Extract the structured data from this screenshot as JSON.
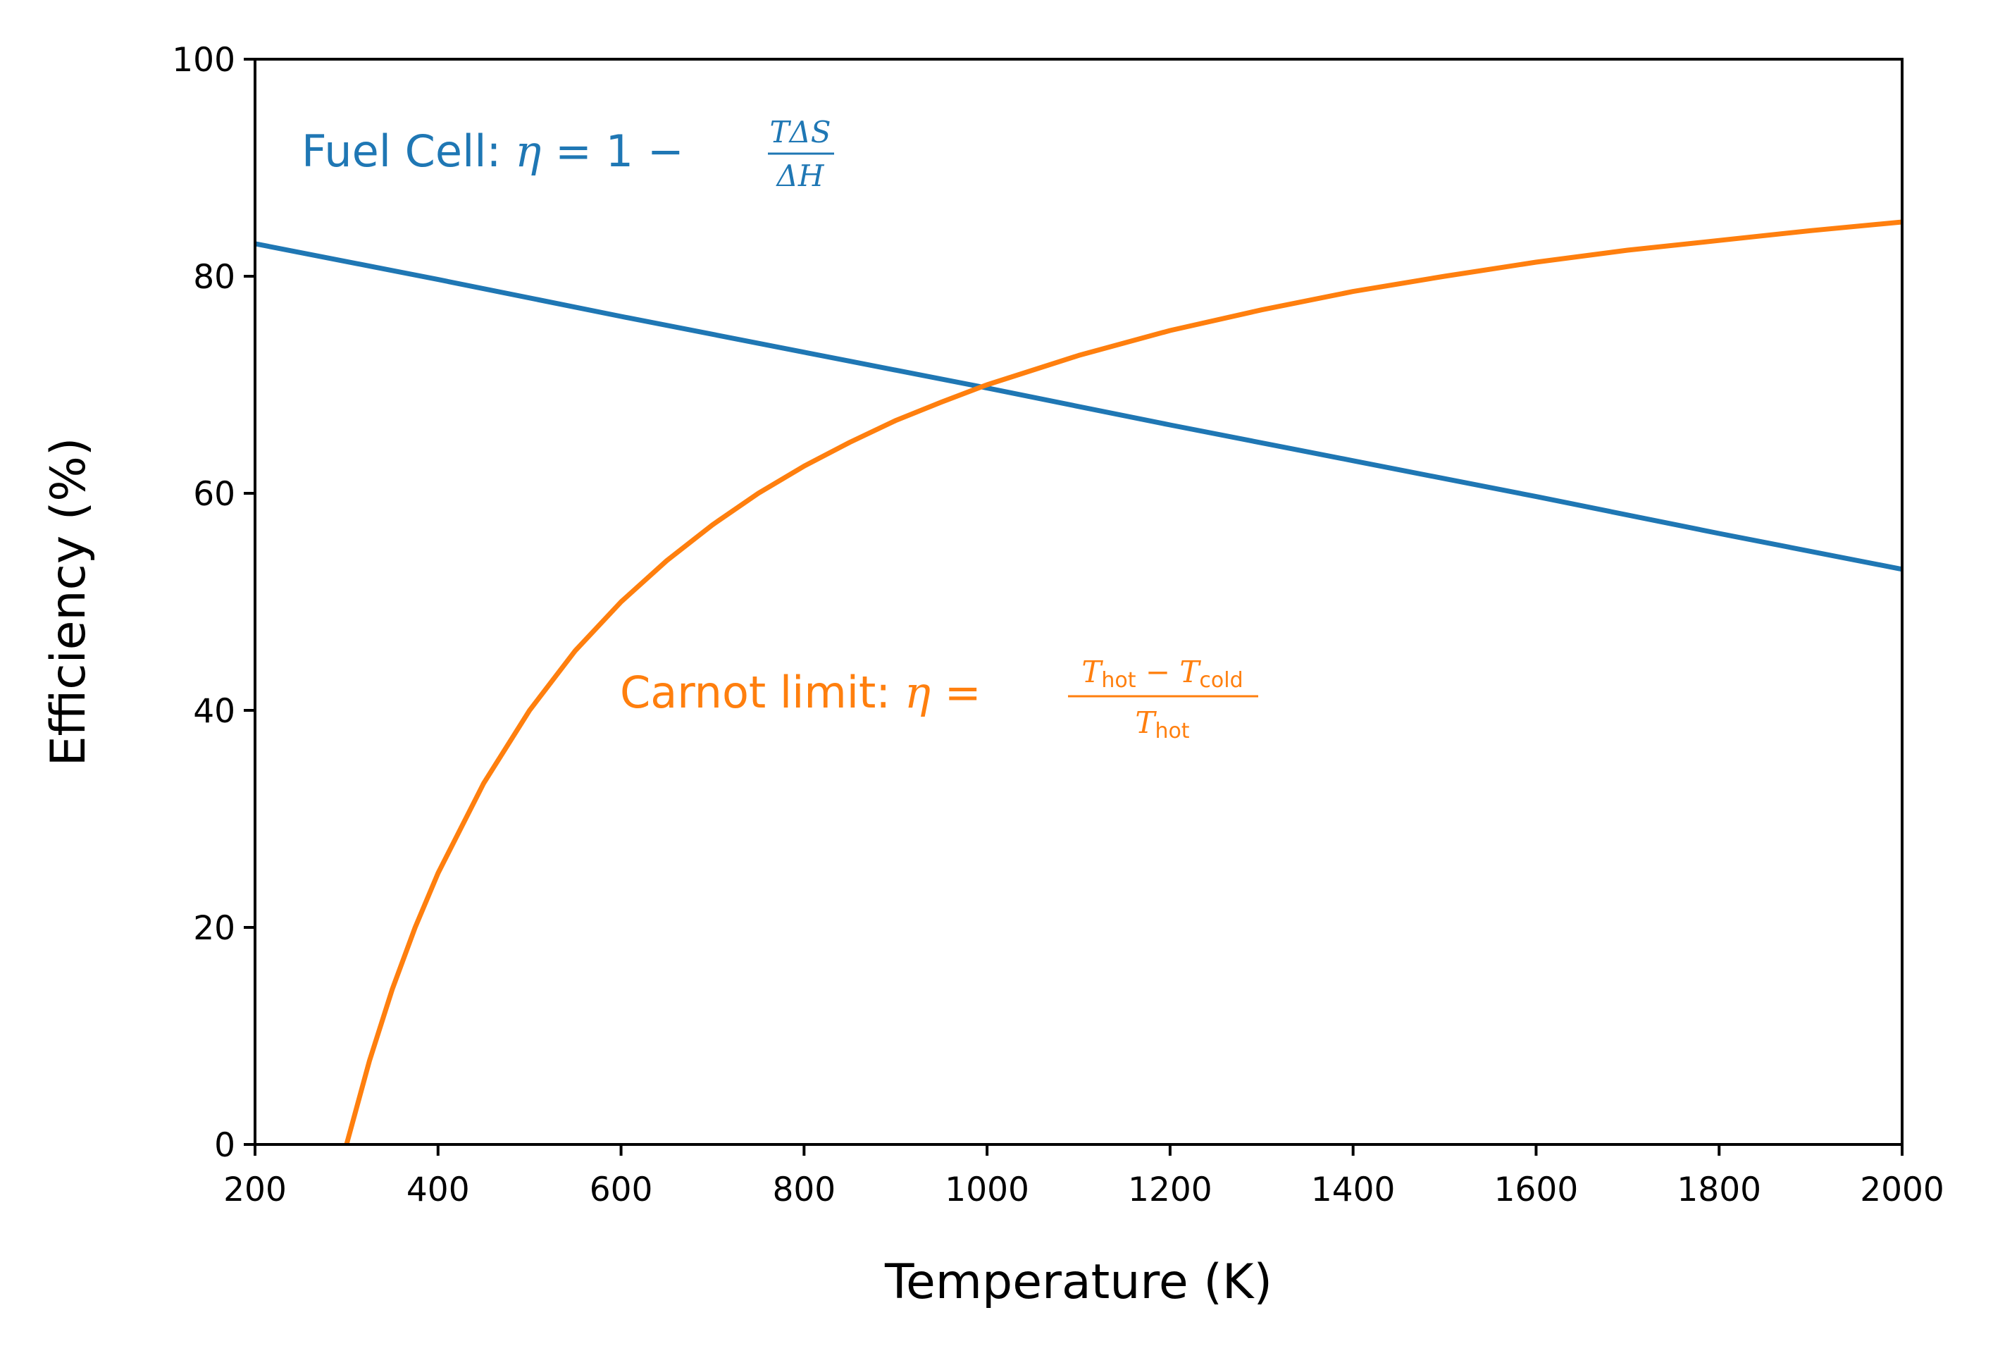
{
  "chart_data": {
    "type": "line",
    "xlabel": "Temperature (K)",
    "ylabel": "Efficiency (%)",
    "xlim": [
      200,
      2000
    ],
    "ylim": [
      0,
      100
    ],
    "x_ticks": [
      "200",
      "400",
      "600",
      "800",
      "1000",
      "1200",
      "1400",
      "1600",
      "1800",
      "2000"
    ],
    "y_ticks": [
      "0",
      "20",
      "40",
      "60",
      "80",
      "100"
    ],
    "grid": false,
    "colors": {
      "fuel_cell": "#1f77b4",
      "carnot": "#ff7f0e"
    },
    "series": [
      {
        "key": "fuel_cell",
        "x": [
          200,
          400,
          600,
          800,
          1000,
          1200,
          1400,
          1600,
          1800,
          2000
        ],
        "y": [
          83.0,
          79.7,
          76.3,
          73.0,
          69.7,
          66.3,
          63.0,
          59.7,
          56.3,
          53.0
        ]
      },
      {
        "key": "carnot",
        "x": [
          300,
          325,
          350,
          375,
          400,
          450,
          500,
          550,
          600,
          650,
          700,
          750,
          800,
          850,
          900,
          950,
          1000,
          1100,
          1200,
          1300,
          1400,
          1500,
          1600,
          1700,
          1800,
          1900,
          2000
        ],
        "y": [
          0.0,
          7.7,
          14.3,
          20.0,
          25.0,
          33.3,
          40.0,
          45.5,
          50.0,
          53.8,
          57.1,
          60.0,
          62.5,
          64.7,
          66.7,
          68.4,
          70.0,
          72.7,
          75.0,
          76.9,
          78.6,
          80.0,
          81.3,
          82.4,
          83.3,
          84.2,
          85.0
        ]
      }
    ],
    "annotations": {
      "fuel_cell": {
        "prefix": "Fuel Cell: ",
        "eta": "η",
        "equals": " = ",
        "one": "1",
        "minus": " − ",
        "numerator": "TΔS",
        "denominator": "ΔH"
      },
      "carnot": {
        "prefix": "Carnot limit: ",
        "eta": "η",
        "equals": " = ",
        "t": "T",
        "hot": "hot",
        "cold": "cold",
        "minus": " − "
      }
    }
  }
}
